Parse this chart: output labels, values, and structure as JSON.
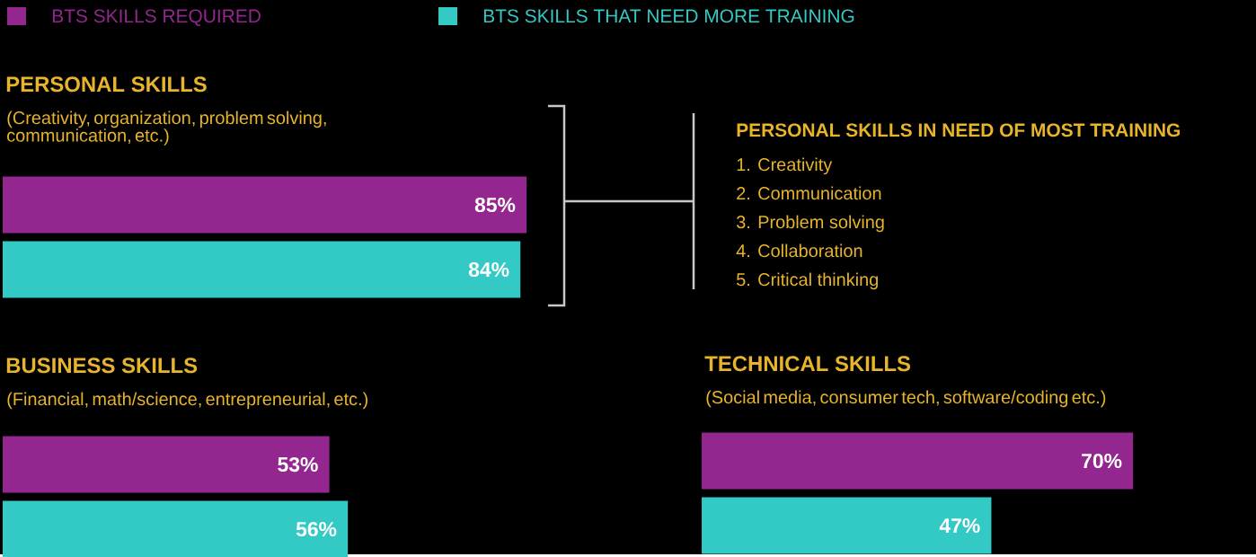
{
  "chart_data": [
    {
      "type": "bar",
      "orientation": "horizontal",
      "title": "PERSONAL SKILLS",
      "subtitle": "(Creativity, organization, problem solving, communication, etc.)",
      "categories": [
        null
      ],
      "tick_labels": false,
      "legend": "top",
      "series": [
        {
          "name": "BTS SKILLS REQUIRED",
          "color": "#93268f",
          "values": [
            85
          ],
          "value_labels": [
            "85%"
          ]
        },
        {
          "name": "BTS SKILLS THAT NEED MORE TRAINING",
          "color": "#33c9c4",
          "values": [
            84
          ],
          "value_labels": [
            "84%"
          ]
        }
      ]
    },
    {
      "type": "other",
      "title": "PERSONAL SKILLS IN NEED OF MOST TRAINING",
      "annotations": [
        "1. Creativity",
        "2. Communication",
        "3. Problem solving",
        "4. Collaboration",
        "5. Critical thinking"
      ]
    },
    {
      "type": "bar",
      "orientation": "horizontal",
      "title": "BUSINESS SKILLS",
      "subtitle": "(Financial, math/science, entrepreneurial, etc.)",
      "categories": [
        null
      ],
      "tick_labels": false,
      "series": [
        {
          "color": "#93268f",
          "values": [
            53
          ],
          "value_labels": [
            "53%"
          ]
        },
        {
          "color": "#33c9c4",
          "values": [
            56
          ],
          "value_labels": [
            "56%"
          ]
        }
      ]
    },
    {
      "type": "bar",
      "orientation": "horizontal",
      "title": "TECHNICAL SKILLS",
      "subtitle": "(Social media, consumer tech, software/coding etc.)",
      "categories": [
        null
      ],
      "tick_labels": false,
      "series": [
        {
          "color": "#93268f",
          "values": [
            70
          ],
          "value_labels": [
            "70%"
          ]
        },
        {
          "color": "#33c9c4",
          "values": [
            47
          ],
          "value_labels": [
            "47%"
          ]
        }
      ]
    }
  ]
}
